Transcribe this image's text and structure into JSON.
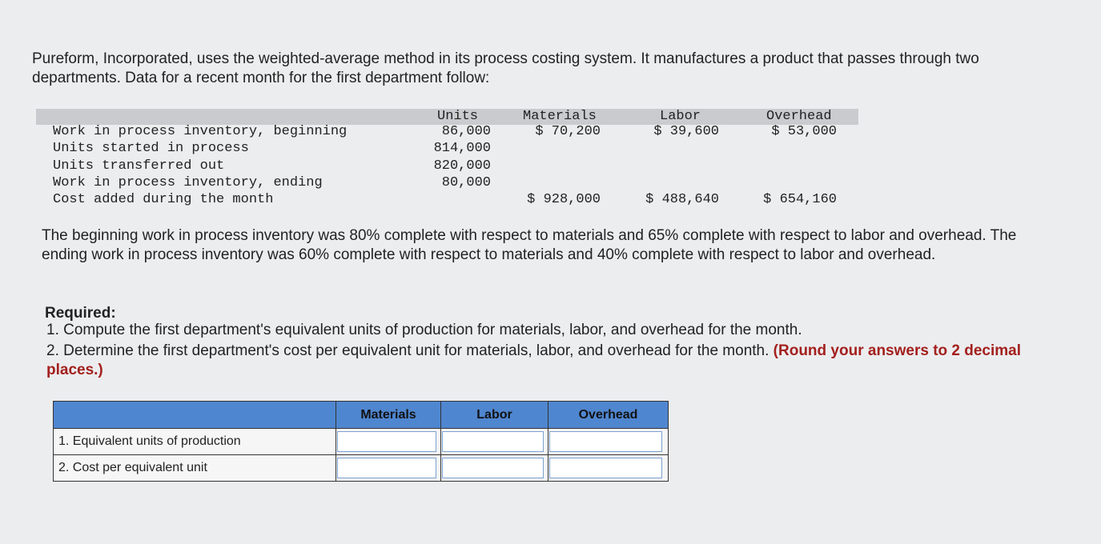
{
  "intro": "Pureform, Incorporated, uses the weighted-average method in its process costing system. It manufactures a product that passes through two departments. Data for a recent month for the first department follow:",
  "data_table": {
    "columns": [
      "Units",
      "Materials",
      "Labor",
      "Overhead"
    ],
    "rows": [
      {
        "label": "Work in process inventory, beginning",
        "units": "86,000",
        "materials": "$ 70,200",
        "labor": "$ 39,600",
        "overhead": "$ 53,000"
      },
      {
        "label": "Units started in process",
        "units": "814,000"
      },
      {
        "label": "Units transferred out",
        "units": "820,000"
      },
      {
        "label": "Work in process inventory, ending",
        "units": "80,000"
      },
      {
        "label": "Cost added during the month",
        "materials": "$ 928,000",
        "labor": "$ 488,640",
        "overhead": "$ 654,160"
      }
    ]
  },
  "completion_note": "The beginning work in process inventory was 80% complete with respect to materials and 65% complete with respect to labor and overhead. The ending work in process inventory was 60% complete with respect to materials and 40% complete with respect to labor and overhead.",
  "required": {
    "heading": "Required:",
    "item_1": "1. Compute the first department's equivalent units of production for materials, labor, and overhead for the month.",
    "item_2": "2. Determine the first department's cost per equivalent unit for materials, labor, and overhead for the month.",
    "item_2_emphasis": "(Round your answers to 2 decimal places.)"
  },
  "answer_table": {
    "columns": [
      "Materials",
      "Labor",
      "Overhead"
    ],
    "rows": [
      "1. Equivalent units of production",
      "2. Cost per equivalent unit"
    ]
  }
}
